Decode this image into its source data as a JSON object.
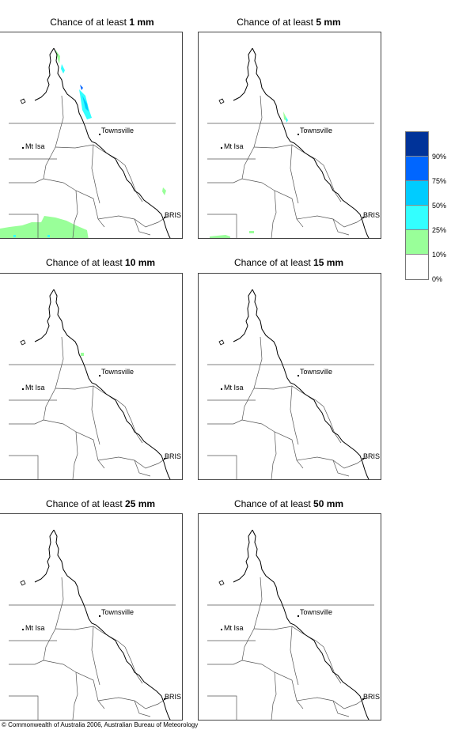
{
  "panels": [
    {
      "title_prefix": "Chance of at least ",
      "amount": "1 mm",
      "shading": "high"
    },
    {
      "title_prefix": "Chance of at least ",
      "amount": "5 mm",
      "shading": "low"
    },
    {
      "title_prefix": "Chance of at least ",
      "amount": "10 mm",
      "shading": "trace"
    },
    {
      "title_prefix": "Chance of at least ",
      "amount": "15 mm",
      "shading": "none"
    },
    {
      "title_prefix": "Chance of at least ",
      "amount": "25 mm",
      "shading": "none"
    },
    {
      "title_prefix": "Chance of at least ",
      "amount": "50 mm",
      "shading": "none"
    }
  ],
  "places": {
    "townsville": "Townsville",
    "mt_isa": "Mt Isa",
    "brisbane": "BRIS"
  },
  "legend": {
    "colors": [
      "#003399",
      "#0066ff",
      "#00ccff",
      "#33ffff",
      "#99ff99",
      "#ffffff"
    ],
    "labels": [
      "90%",
      "75%",
      "50%",
      "25%",
      "10%",
      "0%"
    ]
  },
  "footer": "© Commonwealth of Australia 2006, Australian Bureau of Meteorology"
}
